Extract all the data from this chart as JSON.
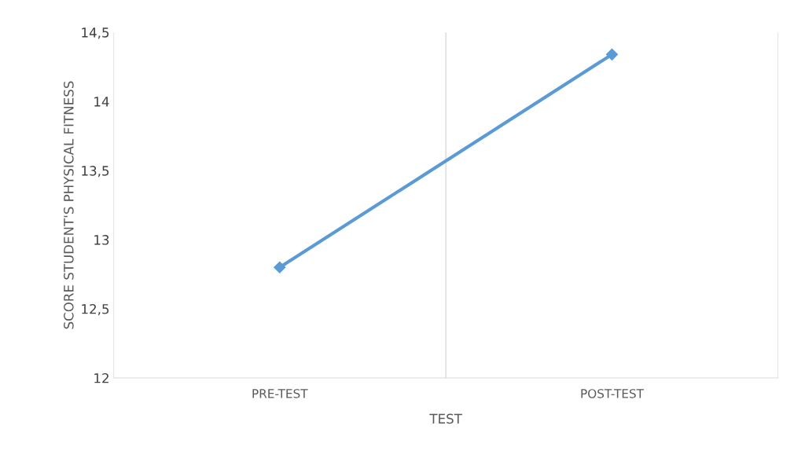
{
  "chart_data": {
    "type": "line",
    "xlabel": "TEST",
    "ylabel": "SCORE STUDENT'S PHYSICAL FITNESS",
    "categories": [
      "PRE-TEST",
      "POST-TEST"
    ],
    "series": [
      {
        "color": "#5b9bd5",
        "values": [
          12.8,
          14.34
        ]
      }
    ],
    "ylim": [
      12,
      14.5
    ],
    "yticks": [
      12,
      {
        "value": 12.5,
        "label": "12,5"
      },
      13,
      {
        "value": 13.5,
        "label": "13,5"
      },
      14,
      {
        "value": 14.5,
        "label": "14,5"
      }
    ],
    "grid": "x",
    "marker": "diamond",
    "line_style": "solid",
    "legend": false
  }
}
